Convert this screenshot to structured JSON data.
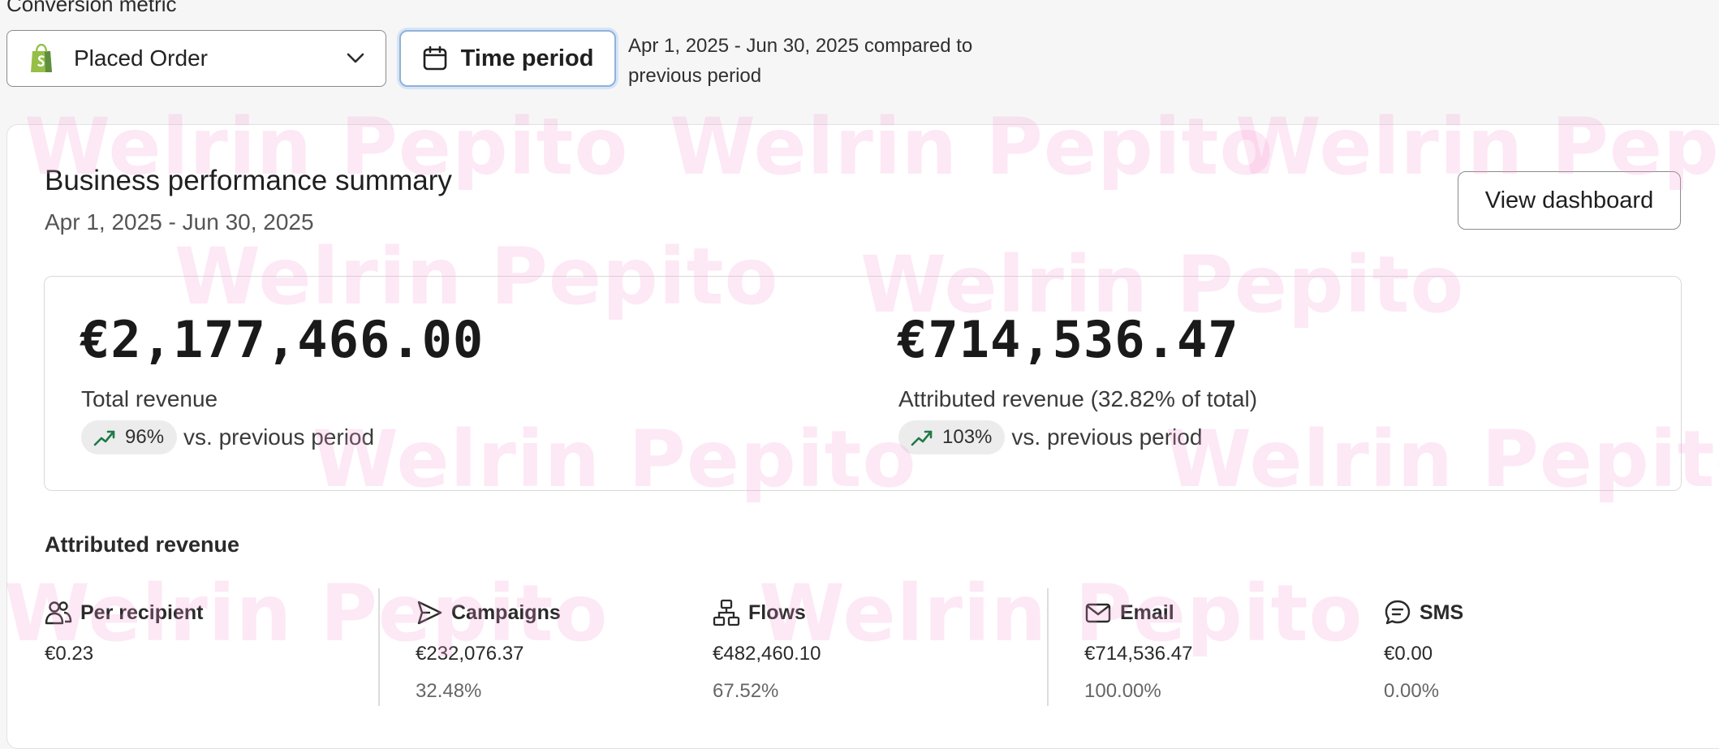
{
  "conversion_metric": {
    "label": "Conversion metric",
    "selected": "Placed Order",
    "selected_icon": "shopify-bag-icon"
  },
  "time_period": {
    "button_label": "Time period",
    "description": "Apr 1, 2025 - Jun 30, 2025 compared to previous period"
  },
  "watermark": "Welrin Pepito",
  "summary": {
    "title": "Business performance summary",
    "date_range": "Apr 1, 2025 - Jun 30, 2025",
    "view_button": "View dashboard",
    "total": {
      "value": "€2,177,466.00",
      "label": "Total revenue",
      "trend": "96%",
      "trend_direction": "up",
      "comparison": "vs. previous period"
    },
    "attributed": {
      "value": "€714,536.47",
      "label": "Attributed revenue (32.82% of total)",
      "trend": "103%",
      "trend_direction": "up",
      "comparison": "vs. previous period"
    }
  },
  "attributed_revenue": {
    "title": "Attributed revenue",
    "stats": [
      {
        "name": "Per recipient",
        "icon": "people-icon",
        "value": "€0.23",
        "percent": ""
      },
      {
        "name": "Campaigns",
        "icon": "send-icon",
        "value": "€232,076.37",
        "percent": "32.48%"
      },
      {
        "name": "Flows",
        "icon": "flow-icon",
        "value": "€482,460.10",
        "percent": "67.52%"
      },
      {
        "name": "Email",
        "icon": "mail-icon",
        "value": "€714,536.47",
        "percent": "100.00%"
      },
      {
        "name": "SMS",
        "icon": "sms-icon",
        "value": "€0.00",
        "percent": "0.00%"
      }
    ]
  },
  "colors": {
    "trend_up": "#1e7a46",
    "focus_border": "#8fb2d9",
    "shopify_green": "#95bf47",
    "watermark": "#f496d2"
  }
}
